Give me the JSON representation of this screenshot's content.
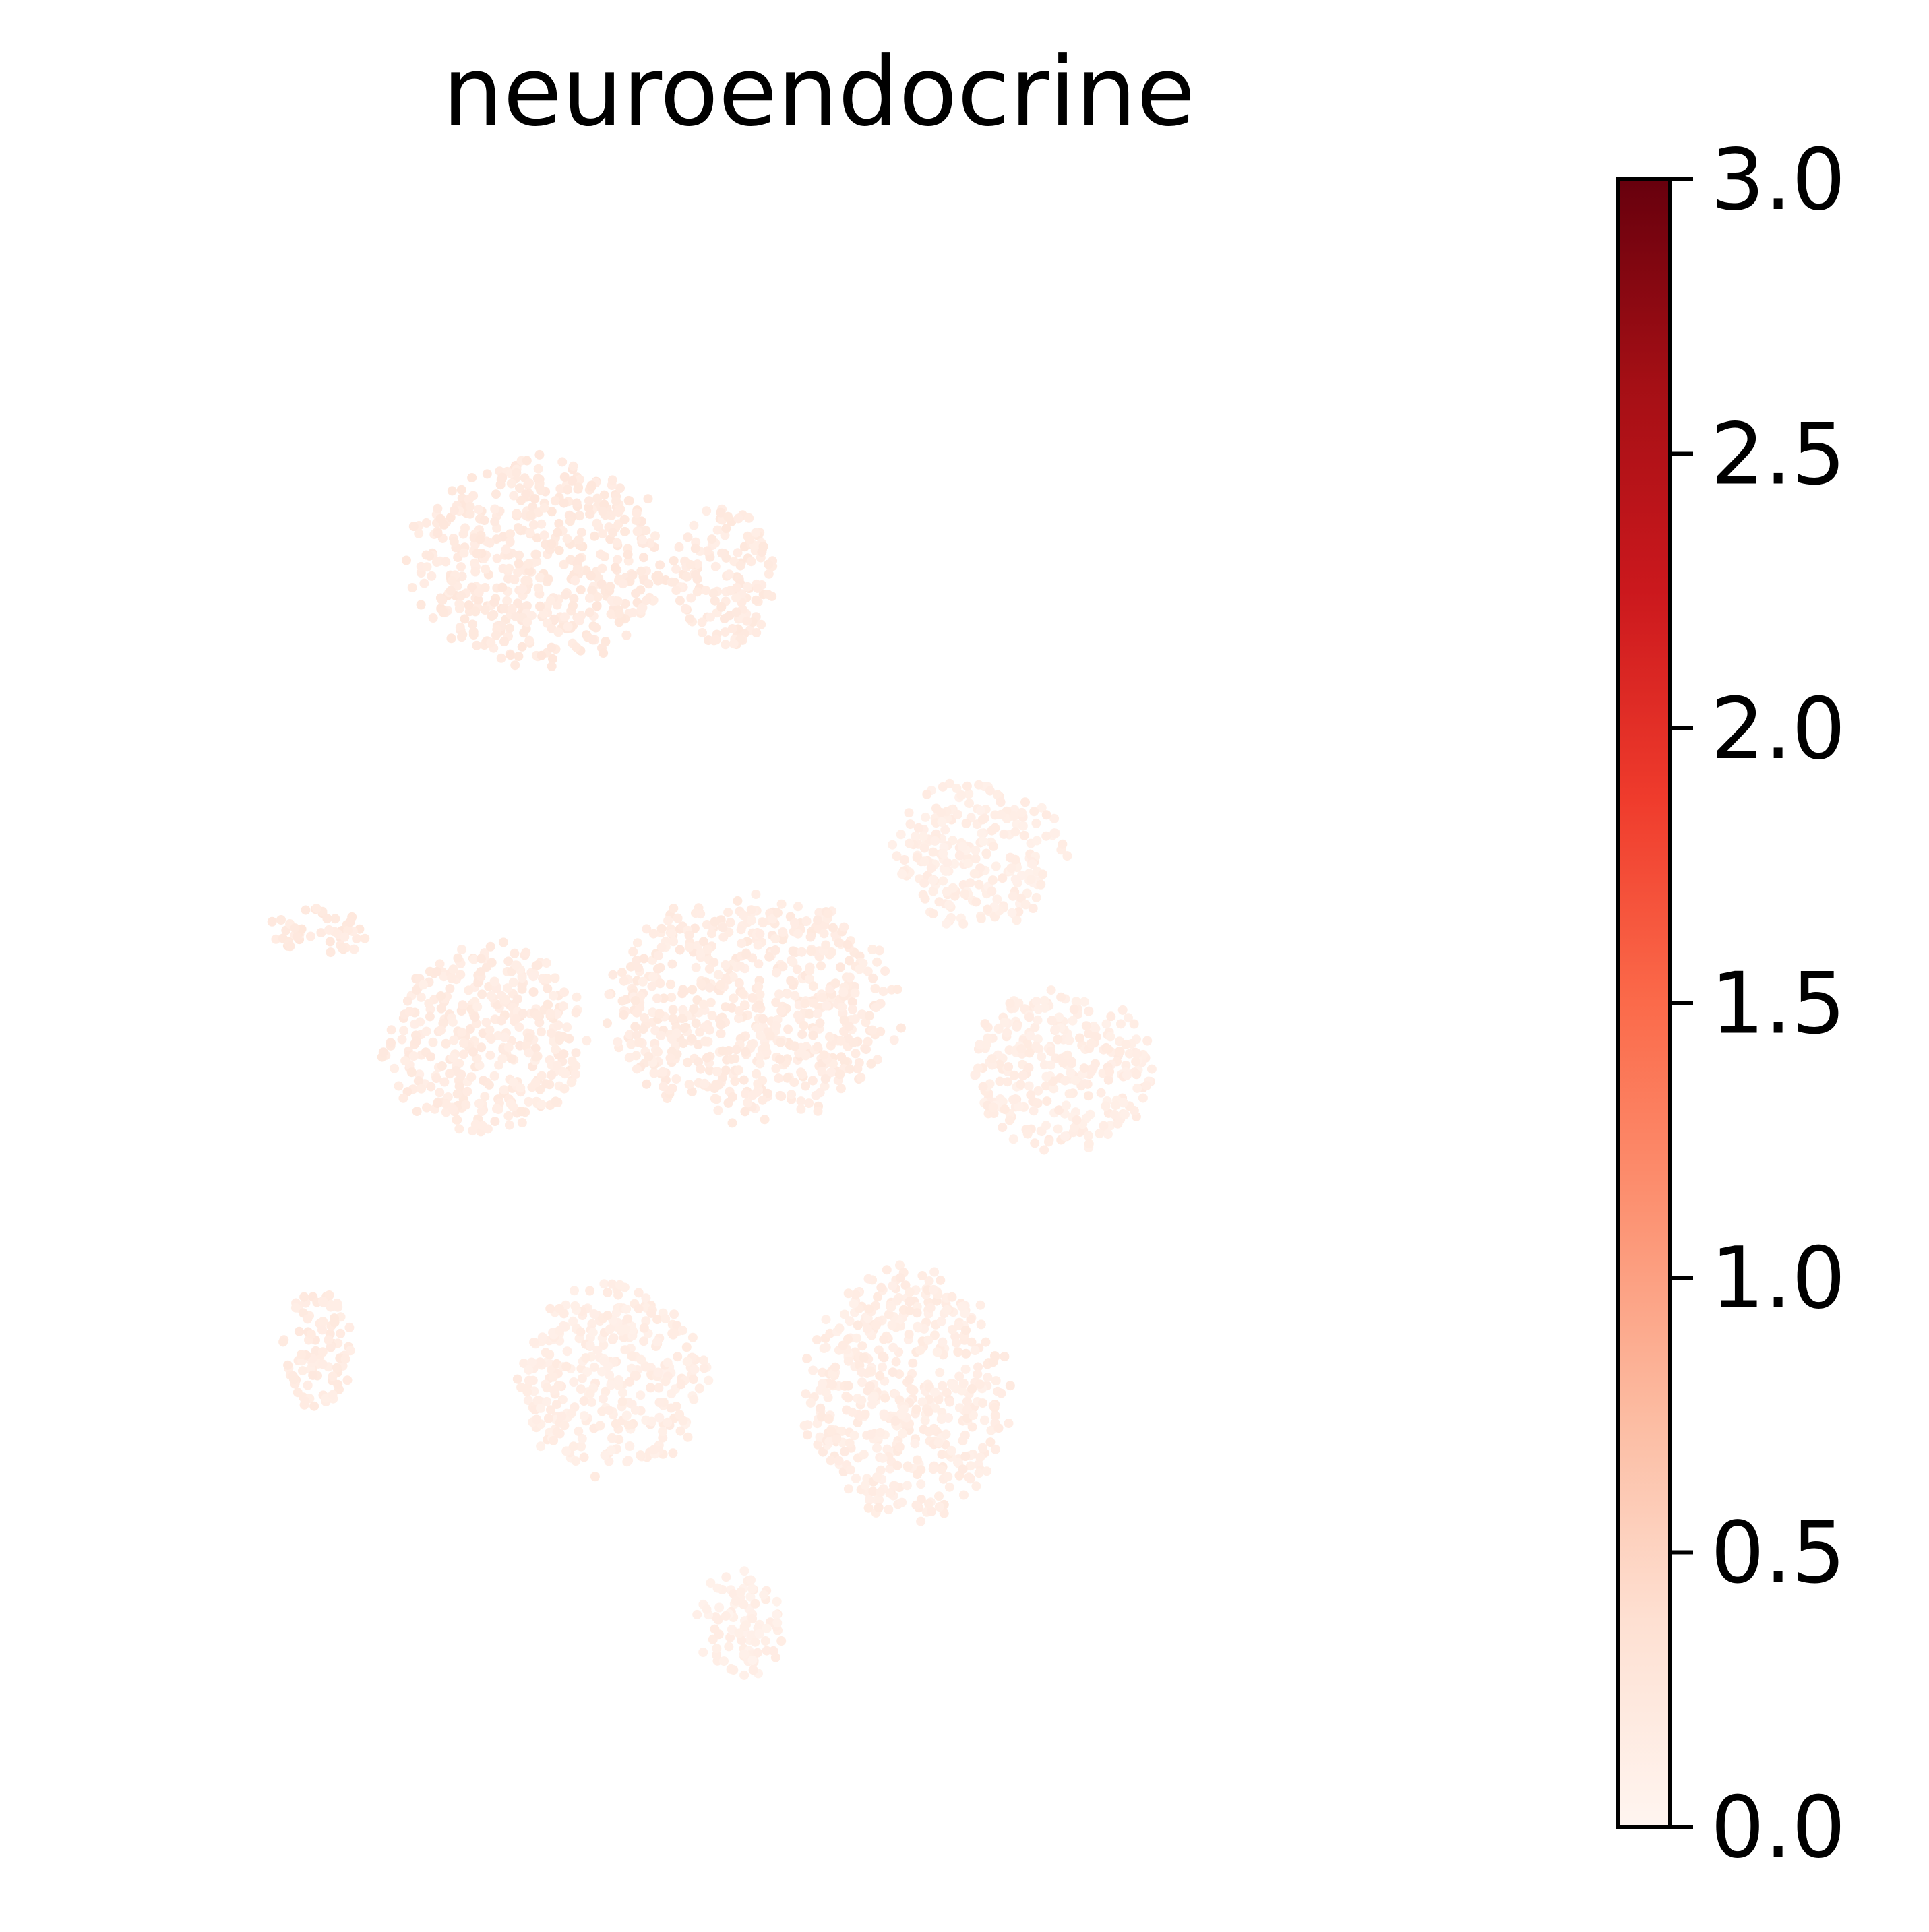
{
  "chart_data": {
    "type": "scatter",
    "title": "neuroendocrine",
    "colormap": "Reds",
    "colorbar": {
      "min": 0.0,
      "max": 3.0,
      "ticks": [
        0.0,
        0.5,
        1.0,
        1.5,
        2.0,
        2.5,
        3.0
      ],
      "tick_labels": [
        "0.0",
        "0.5",
        "1.0",
        "1.5",
        "2.0",
        "2.5",
        "3.0"
      ],
      "stops": [
        "#fff5f0",
        "#fee0d2",
        "#fcbba1",
        "#fc9272",
        "#fb6a4a",
        "#ef3b2c",
        "#cb181d",
        "#a50f15",
        "#67000d"
      ]
    },
    "axes_visible": false,
    "grid": false,
    "point_value_range": [
      0.0,
      0.35
    ],
    "clusters": [
      {
        "id": "c1",
        "cx": 0.3,
        "cy": 0.78,
        "rx": 0.09,
        "ry": 0.065,
        "value": 0.2
      },
      {
        "id": "c2",
        "cx": 0.43,
        "cy": 0.77,
        "rx": 0.035,
        "ry": 0.045,
        "value": 0.18
      },
      {
        "id": "c3",
        "cx": 0.14,
        "cy": 0.54,
        "rx": 0.035,
        "ry": 0.015,
        "value": 0.2
      },
      {
        "id": "c4",
        "cx": 0.26,
        "cy": 0.47,
        "rx": 0.07,
        "ry": 0.06,
        "value": 0.17
      },
      {
        "id": "c5",
        "cx": 0.45,
        "cy": 0.49,
        "rx": 0.1,
        "ry": 0.07,
        "value": 0.17
      },
      {
        "id": "c6",
        "cx": 0.61,
        "cy": 0.59,
        "rx": 0.06,
        "ry": 0.045,
        "value": 0.12
      },
      {
        "id": "c7",
        "cx": 0.67,
        "cy": 0.45,
        "rx": 0.065,
        "ry": 0.05,
        "value": 0.13
      },
      {
        "id": "c8",
        "cx": 0.14,
        "cy": 0.27,
        "rx": 0.025,
        "ry": 0.04,
        "value": 0.17
      },
      {
        "id": "c9",
        "cx": 0.35,
        "cy": 0.25,
        "rx": 0.065,
        "ry": 0.06,
        "value": 0.13
      },
      {
        "id": "c10",
        "cx": 0.56,
        "cy": 0.24,
        "rx": 0.07,
        "ry": 0.08,
        "value": 0.14
      },
      {
        "id": "c11",
        "cx": 0.44,
        "cy": 0.09,
        "rx": 0.03,
        "ry": 0.035,
        "value": 0.1
      }
    ]
  }
}
